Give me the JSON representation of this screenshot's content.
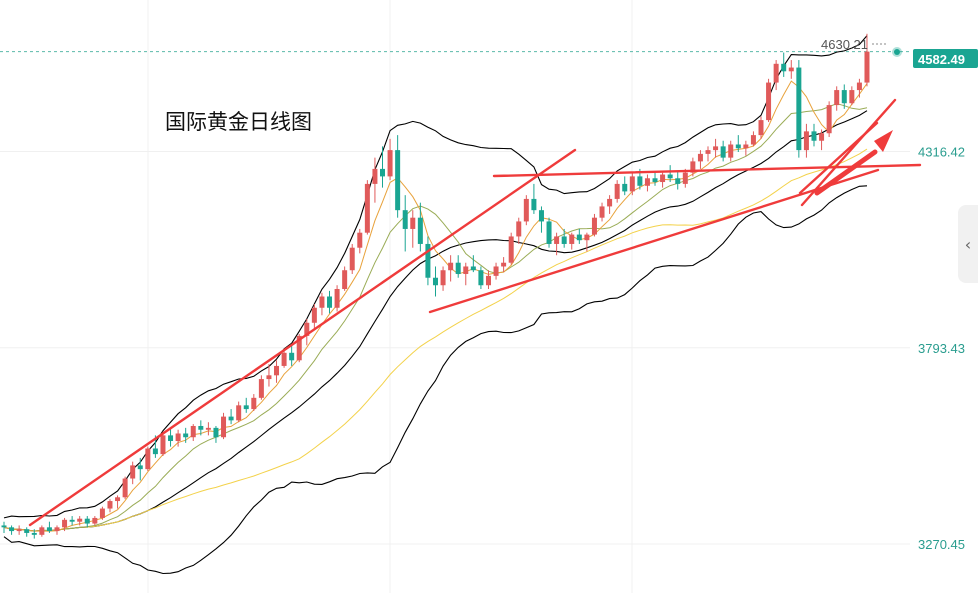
{
  "chart_data": {
    "type": "candlestick",
    "title": "国际黄金日线图",
    "y_axis_labels": [
      "4316.42",
      "3793.43",
      "3270.45"
    ],
    "ylim": [
      3140,
      4720
    ],
    "last_price": "4582.49",
    "high_marker": "4630.21",
    "colors": {
      "up": "#e05a5a",
      "down": "#1aa592",
      "upper_band": "#000000",
      "ma_fast": "#e8a23c",
      "ma_mid": "#9aac56",
      "ma_slow": "#f3d24b",
      "trendline": "#ef3b3b",
      "axis_label": "#2a9d8f",
      "last_badge": "#1aa592"
    },
    "ohlc": [
      [
        3320,
        3330,
        3300,
        3315
      ],
      [
        3315,
        3320,
        3295,
        3305
      ],
      [
        3305,
        3320,
        3295,
        3310
      ],
      [
        3310,
        3315,
        3290,
        3300
      ],
      [
        3300,
        3310,
        3285,
        3295
      ],
      [
        3295,
        3320,
        3290,
        3315
      ],
      [
        3315,
        3330,
        3300,
        3305
      ],
      [
        3305,
        3320,
        3295,
        3315
      ],
      [
        3315,
        3340,
        3305,
        3335
      ],
      [
        3335,
        3345,
        3320,
        3330
      ],
      [
        3330,
        3345,
        3320,
        3338
      ],
      [
        3338,
        3345,
        3315,
        3325
      ],
      [
        3325,
        3345,
        3320,
        3340
      ],
      [
        3340,
        3370,
        3335,
        3365
      ],
      [
        3365,
        3390,
        3355,
        3385
      ],
      [
        3385,
        3400,
        3365,
        3395
      ],
      [
        3395,
        3450,
        3390,
        3445
      ],
      [
        3445,
        3490,
        3430,
        3480
      ],
      [
        3480,
        3500,
        3440,
        3470
      ],
      [
        3470,
        3530,
        3465,
        3525
      ],
      [
        3525,
        3560,
        3500,
        3510
      ],
      [
        3510,
        3570,
        3505,
        3560
      ],
      [
        3560,
        3580,
        3530,
        3545
      ],
      [
        3545,
        3575,
        3530,
        3565
      ],
      [
        3565,
        3580,
        3540,
        3555
      ],
      [
        3555,
        3590,
        3545,
        3585
      ],
      [
        3585,
        3600,
        3560,
        3575
      ],
      [
        3575,
        3595,
        3560,
        3580
      ],
      [
        3580,
        3585,
        3540,
        3555
      ],
      [
        3555,
        3620,
        3550,
        3610
      ],
      [
        3610,
        3630,
        3590,
        3600
      ],
      [
        3600,
        3650,
        3595,
        3640
      ],
      [
        3640,
        3660,
        3620,
        3630
      ],
      [
        3630,
        3670,
        3625,
        3660
      ],
      [
        3660,
        3720,
        3655,
        3710
      ],
      [
        3710,
        3750,
        3690,
        3720
      ],
      [
        3720,
        3760,
        3700,
        3745
      ],
      [
        3745,
        3790,
        3740,
        3780
      ],
      [
        3780,
        3800,
        3745,
        3760
      ],
      [
        3760,
        3830,
        3755,
        3825
      ],
      [
        3825,
        3870,
        3800,
        3860
      ],
      [
        3860,
        3910,
        3840,
        3900
      ],
      [
        3900,
        3940,
        3880,
        3930
      ],
      [
        3930,
        3945,
        3885,
        3900
      ],
      [
        3900,
        3960,
        3890,
        3950
      ],
      [
        3950,
        4010,
        3945,
        4000
      ],
      [
        4000,
        4070,
        3990,
        4060
      ],
      [
        4060,
        4110,
        4045,
        4100
      ],
      [
        4100,
        4240,
        4095,
        4230
      ],
      [
        4230,
        4300,
        4180,
        4270
      ],
      [
        4270,
        4330,
        4220,
        4250
      ],
      [
        4250,
        4350,
        4240,
        4320
      ],
      [
        4320,
        4360,
        4140,
        4160
      ],
      [
        4160,
        4200,
        4050,
        4110
      ],
      [
        4110,
        4160,
        4060,
        4140
      ],
      [
        4140,
        4180,
        4050,
        4070
      ],
      [
        4070,
        4090,
        3960,
        3980
      ],
      [
        3980,
        4010,
        3930,
        3960
      ],
      [
        3960,
        4010,
        3945,
        4000
      ],
      [
        4000,
        4040,
        3970,
        4020
      ],
      [
        4020,
        4040,
        3980,
        3990
      ],
      [
        3990,
        4020,
        3960,
        4010
      ],
      [
        4010,
        4040,
        3995,
        4000
      ],
      [
        4000,
        4010,
        3950,
        3960
      ],
      [
        3960,
        4000,
        3950,
        3985
      ],
      [
        3985,
        4020,
        3975,
        4010
      ],
      [
        4010,
        4035,
        3995,
        4020
      ],
      [
        4020,
        4100,
        4015,
        4090
      ],
      [
        4090,
        4140,
        4070,
        4130
      ],
      [
        4130,
        4200,
        4120,
        4190
      ],
      [
        4190,
        4230,
        4150,
        4160
      ],
      [
        4160,
        4170,
        4100,
        4130
      ],
      [
        4130,
        4140,
        4060,
        4070
      ],
      [
        4070,
        4100,
        4040,
        4090
      ],
      [
        4090,
        4110,
        4060,
        4070
      ],
      [
        4070,
        4100,
        4055,
        4095
      ],
      [
        4095,
        4110,
        4070,
        4080
      ],
      [
        4080,
        4100,
        4050,
        4095
      ],
      [
        4095,
        4150,
        4090,
        4140
      ],
      [
        4140,
        4180,
        4130,
        4170
      ],
      [
        4170,
        4200,
        4150,
        4190
      ],
      [
        4190,
        4240,
        4180,
        4230
      ],
      [
        4230,
        4250,
        4200,
        4210
      ],
      [
        4210,
        4260,
        4200,
        4250
      ],
      [
        4250,
        4270,
        4215,
        4225
      ],
      [
        4225,
        4255,
        4210,
        4245
      ],
      [
        4245,
        4260,
        4225,
        4235
      ],
      [
        4235,
        4260,
        4220,
        4255
      ],
      [
        4255,
        4280,
        4235,
        4245
      ],
      [
        4245,
        4265,
        4215,
        4230
      ],
      [
        4230,
        4270,
        4220,
        4260
      ],
      [
        4260,
        4300,
        4250,
        4290
      ],
      [
        4290,
        4320,
        4270,
        4310
      ],
      [
        4310,
        4330,
        4290,
        4320
      ],
      [
        4320,
        4350,
        4300,
        4330
      ],
      [
        4330,
        4345,
        4290,
        4300
      ],
      [
        4300,
        4345,
        4290,
        4335
      ],
      [
        4335,
        4360,
        4315,
        4325
      ],
      [
        4325,
        4345,
        4305,
        4335
      ],
      [
        4335,
        4370,
        4330,
        4360
      ],
      [
        4360,
        4410,
        4350,
        4400
      ],
      [
        4400,
        4510,
        4395,
        4500
      ],
      [
        4500,
        4560,
        4480,
        4550
      ],
      [
        4550,
        4580,
        4515,
        4530
      ],
      [
        4530,
        4560,
        4510,
        4540
      ],
      [
        4540,
        4560,
        4300,
        4320
      ],
      [
        4320,
        4390,
        4300,
        4370
      ],
      [
        4370,
        4390,
        4330,
        4345
      ],
      [
        4345,
        4375,
        4320,
        4365
      ],
      [
        4365,
        4450,
        4355,
        4440
      ],
      [
        4440,
        4490,
        4425,
        4480
      ],
      [
        4480,
        4495,
        4430,
        4445
      ],
      [
        4445,
        4490,
        4440,
        4480
      ],
      [
        4480,
        4510,
        4460,
        4500
      ],
      [
        4500,
        4630,
        4490,
        4582.49
      ]
    ]
  }
}
